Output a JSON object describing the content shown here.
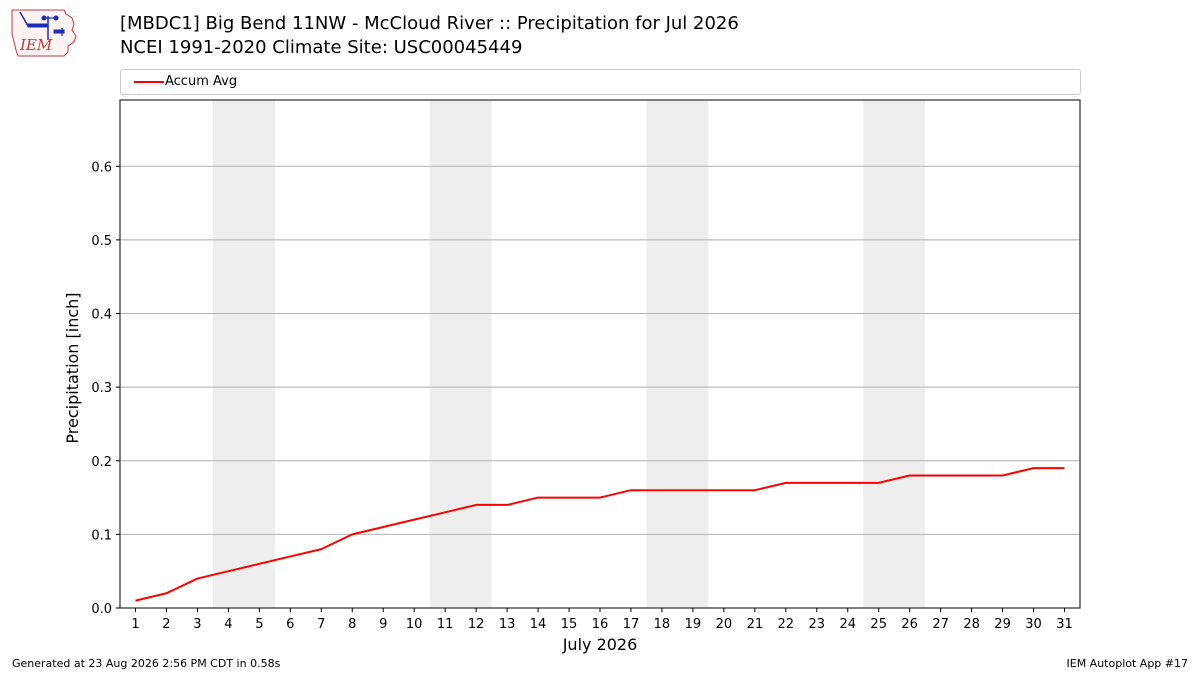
{
  "logo": {
    "text": "IEM"
  },
  "title_line1": "[MBDC1] Big Bend 11NW - McCloud River :: Precipitation for Jul 2026",
  "title_line2": "NCEI 1991-2020 Climate Site: USC00045449",
  "footer": {
    "left": "Generated at 23 Aug 2026 2:56 PM CDT in 0.58s",
    "right": "IEM Autoplot App #17"
  },
  "chart_data": {
    "type": "line",
    "xlabel": "July 2026",
    "ylabel": "Precipitation [inch]",
    "ylim": [
      0,
      0.69
    ],
    "xlim": [
      0.5,
      31.5
    ],
    "yticks": [
      0.0,
      0.1,
      0.2,
      0.3,
      0.4,
      0.5,
      0.6
    ],
    "ytick_labels": [
      "0.0",
      "0.1",
      "0.2",
      "0.3",
      "0.4",
      "0.5",
      "0.6"
    ],
    "xticks": [
      1,
      2,
      3,
      4,
      5,
      6,
      7,
      8,
      9,
      10,
      11,
      12,
      13,
      14,
      15,
      16,
      17,
      18,
      19,
      20,
      21,
      22,
      23,
      24,
      25,
      26,
      27,
      28,
      29,
      30,
      31
    ],
    "grid": "horizontal",
    "legend_placement": "top",
    "weekend_bands": [
      [
        3.5,
        5.5
      ],
      [
        10.5,
        12.5
      ],
      [
        17.5,
        19.5
      ],
      [
        24.5,
        26.5
      ]
    ],
    "band_color": "#eeeeee",
    "series": [
      {
        "name": "Accum Avg",
        "color": "#ff0000",
        "x": [
          1,
          2,
          3,
          4,
          5,
          6,
          7,
          8,
          9,
          10,
          11,
          12,
          13,
          14,
          15,
          16,
          17,
          18,
          19,
          20,
          21,
          22,
          23,
          24,
          25,
          26,
          27,
          28,
          29,
          30,
          31
        ],
        "values": [
          0.01,
          0.02,
          0.04,
          0.05,
          0.06,
          0.07,
          0.08,
          0.1,
          0.11,
          0.12,
          0.13,
          0.14,
          0.14,
          0.15,
          0.15,
          0.15,
          0.16,
          0.16,
          0.16,
          0.16,
          0.16,
          0.17,
          0.17,
          0.17,
          0.17,
          0.18,
          0.18,
          0.18,
          0.18,
          0.19,
          0.19
        ]
      }
    ]
  }
}
